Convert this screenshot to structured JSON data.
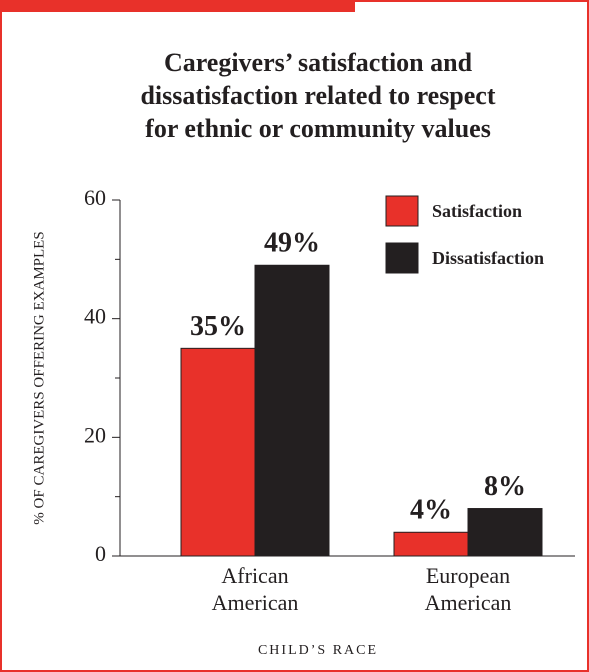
{
  "chart_data": {
    "type": "bar",
    "title": [
      "Caregivers’ satisfaction and",
      "dissatisfaction related to respect",
      "for ethnic or community values"
    ],
    "y_label": "% OF CAREGIVERS OFFERING EXAMPLES",
    "x_label": "CHILD’S RACE",
    "categories": [
      "African American",
      "European American"
    ],
    "series": [
      {
        "name": "Satisfaction",
        "color": "#e8312a",
        "values": [
          35,
          4
        ],
        "value_labels": [
          "35%",
          "4%"
        ]
      },
      {
        "name": "Dissatisfaction",
        "color": "#231f20",
        "values": [
          49,
          8
        ],
        "value_labels": [
          "49%",
          "8%"
        ]
      }
    ],
    "ylim": [
      0,
      60
    ],
    "yticks": [
      0,
      20,
      40,
      60
    ],
    "minor_yticks": [
      10,
      30,
      50
    ],
    "legend": "upper right"
  }
}
